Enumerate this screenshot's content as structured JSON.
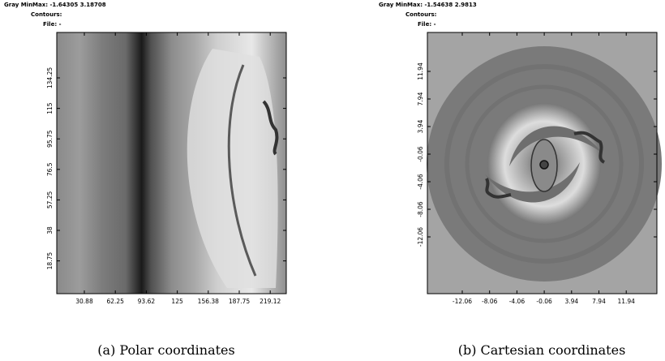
{
  "panels": [
    {
      "header": {
        "minmax": "Gray MinMax: -1.64305 3.18708",
        "contours": "Contours:",
        "file": "File: -"
      },
      "xticks": [
        "30.88",
        "62.25",
        "93.62",
        "125",
        "156.38",
        "187.75",
        "219.12"
      ],
      "yticks": [
        "134.25",
        "115",
        "95.75",
        "76.5",
        "57.25",
        "38",
        "18.75"
      ],
      "caption": "(a)  Polar coordinates"
    },
    {
      "header": {
        "minmax": "Gray MinMax: -1.54638 2.9813",
        "contours": "Contours:",
        "file": "File: -"
      },
      "xticks": [
        "-12.06",
        "-8.06",
        "-4.06",
        "-0.06",
        "3.94",
        "7.94",
        "11.94"
      ],
      "yticks": [
        "11.94",
        "7.94",
        "3.94",
        "-0.06",
        "-4.06",
        "-8.06",
        "-12.06"
      ],
      "caption": "(b)  Cartesian coordinates"
    }
  ]
}
